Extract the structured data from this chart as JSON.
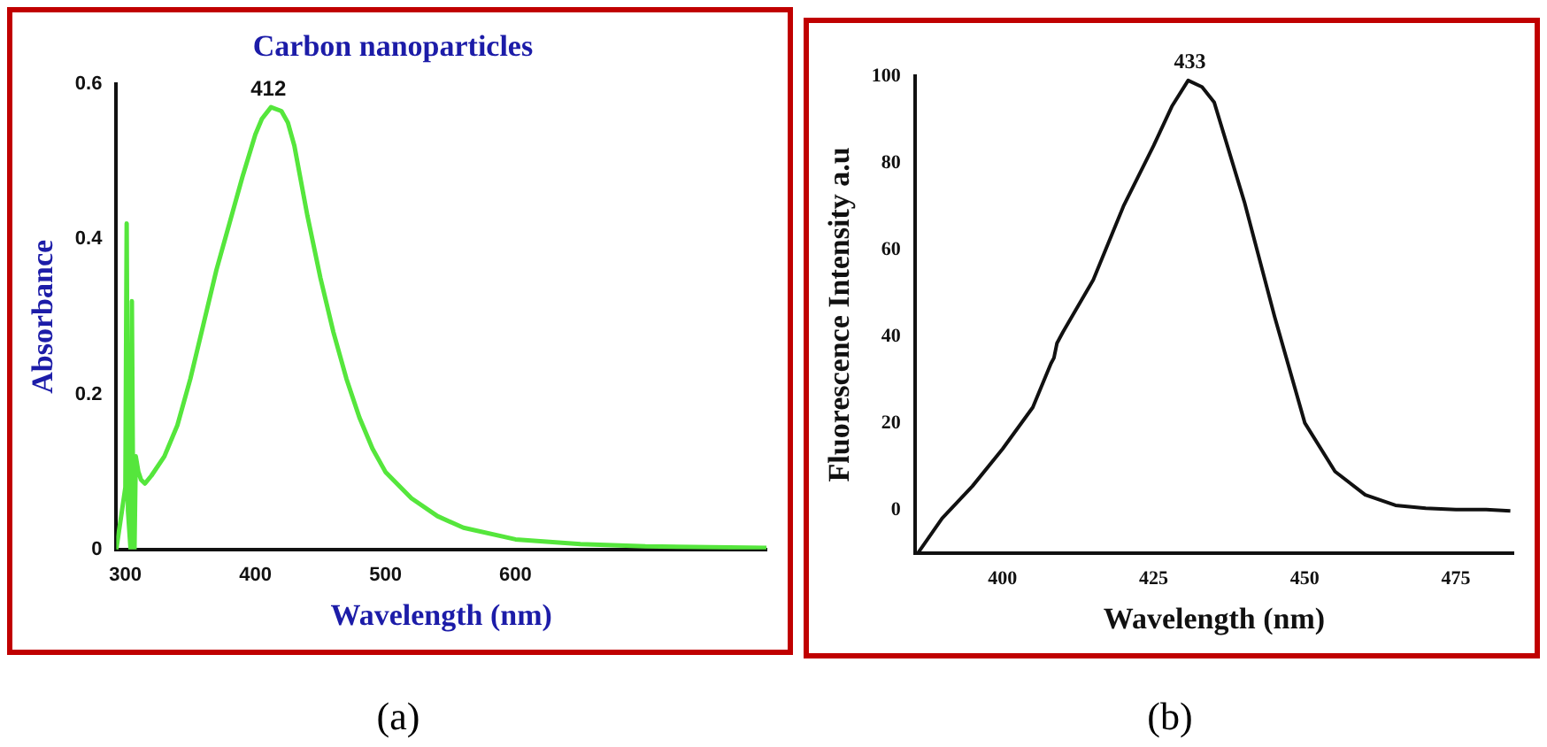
{
  "chart_data": [
    {
      "type": "line",
      "title": "Carbon nanoparticles",
      "xlabel": "Wavelength (nm)",
      "ylabel": "Absorbance",
      "x": [
        293,
        300,
        301,
        302,
        304,
        305,
        306,
        307,
        308,
        310,
        312,
        315,
        320,
        330,
        340,
        350,
        360,
        370,
        380,
        390,
        400,
        405,
        412,
        420,
        425,
        430,
        440,
        450,
        460,
        470,
        480,
        490,
        500,
        520,
        540,
        560,
        600,
        650,
        700,
        750,
        793
      ],
      "series": [
        {
          "color": "#55e63c",
          "values": [
            0,
            0.08,
            0.42,
            0.05,
            0,
            0.32,
            0.05,
            0,
            0.12,
            0.1,
            0.09,
            0.085,
            0.095,
            0.12,
            0.16,
            0.22,
            0.29,
            0.36,
            0.42,
            0.48,
            0.535,
            0.555,
            0.57,
            0.565,
            0.55,
            0.52,
            0.43,
            0.35,
            0.28,
            0.22,
            0.17,
            0.13,
            0.1,
            0.066,
            0.043,
            0.028,
            0.013,
            0.007,
            0.004,
            0.003,
            0.002
          ]
        }
      ],
      "xlim": [
        293,
        793
      ],
      "ylim": [
        0,
        0.6
      ],
      "xticks": [
        300,
        400,
        500,
        600
      ],
      "yticks": [
        0,
        0.2,
        0.4,
        0.6
      ],
      "annotations": [
        {
          "text": "412",
          "x": 410,
          "y": 0.57
        },
        "(a)"
      ]
    },
    {
      "type": "line",
      "xlabel": "Wavelength (nm)",
      "ylabel": "Fluorescence Intensity a.u",
      "x": [
        386,
        390,
        395,
        400,
        405,
        408,
        408.5,
        409,
        410,
        415,
        420,
        425,
        428,
        430.7,
        433,
        435,
        440,
        445,
        450,
        455,
        460,
        465,
        470,
        475,
        480,
        484
      ],
      "series": [
        {
          "color": "#111111",
          "values": [
            -10,
            -2,
            5.4,
            14,
            23.6,
            33.7,
            35,
            38.4,
            41,
            53,
            70,
            84,
            93,
            99,
            97.5,
            94,
            71,
            44.5,
            20,
            8.8,
            3.4,
            1,
            0.3,
            0,
            0,
            -0.3
          ]
        }
      ],
      "xlim": [
        385.5,
        484.5
      ],
      "ylim": [
        -10,
        100
      ],
      "xticks": [
        400,
        425,
        450,
        475
      ],
      "yticks": [
        0,
        20,
        40,
        60,
        80,
        100
      ],
      "annotations": [
        {
          "text": "433",
          "x": 431,
          "y": 99
        },
        "(b)"
      ]
    }
  ]
}
